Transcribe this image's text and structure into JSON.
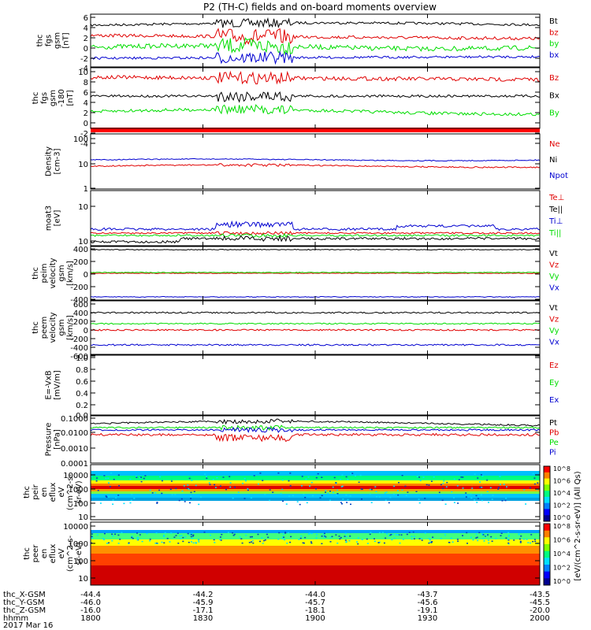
{
  "title": "P2 (TH-C) fields and on-board moments overview",
  "colors": {
    "black": "#000000",
    "red": "#e00000",
    "green": "#00dd00",
    "blue": "#0000d0",
    "navy": "#1010cc"
  },
  "panels": [
    {
      "ylabel": [
        "thc",
        "fgs",
        "gsm",
        "[nT]"
      ],
      "ticks": [
        "6",
        "4",
        "2",
        "0",
        "-2",
        "-4"
      ],
      "legend": [
        {
          "label": "Bt",
          "color": "black"
        },
        {
          "label": "bz",
          "color": "red"
        },
        {
          "label": "by",
          "color": "green"
        },
        {
          "label": "bx",
          "color": "blue"
        }
      ]
    },
    {
      "ylabel": [
        "thc",
        "fgs",
        "gsm",
        "-180",
        "[nT]"
      ],
      "ticks": [
        "10",
        "8",
        "6",
        "4",
        "2",
        "0",
        "-2",
        "-4"
      ],
      "legend": [
        {
          "label": "Bz",
          "color": "red"
        },
        {
          "label": "Bx",
          "color": "black"
        },
        {
          "label": "By",
          "color": "green"
        }
      ]
    },
    {
      "ylabel": [
        "Density",
        "[cm-3]"
      ],
      "ticks": [
        "100",
        "10",
        "1"
      ],
      "legend": [
        {
          "label": "Ne",
          "color": "red"
        },
        {
          "label": "Ni",
          "color": "black"
        },
        {
          "label": "Npot",
          "color": "blue"
        }
      ]
    },
    {
      "ylabel": [
        "moat3",
        "[eV]"
      ],
      "ticks": [
        "10",
        "10"
      ],
      "legend": [
        {
          "label": "Te⊥",
          "color": "red"
        },
        {
          "label": "Te||",
          "color": "black"
        },
        {
          "label": "Ti⊥",
          "color": "blue"
        },
        {
          "label": "Ti||",
          "color": "green"
        }
      ]
    },
    {
      "ylabel": [
        "thc",
        "peim",
        "velocity",
        "gsm",
        "[km/s]"
      ],
      "ticks": [
        "400",
        "200",
        "0",
        "-200",
        "-400"
      ],
      "legend": [
        {
          "label": "Vt",
          "color": "black"
        },
        {
          "label": "Vz",
          "color": "red"
        },
        {
          "label": "Vy",
          "color": "green"
        },
        {
          "label": "Vx",
          "color": "blue"
        }
      ]
    },
    {
      "ylabel": [
        "thc",
        "peem",
        "velocity",
        "gsm",
        "[km/s]"
      ],
      "ticks": [
        "600",
        "400",
        "200",
        "0",
        "-200",
        "-400",
        "-600"
      ],
      "legend": [
        {
          "label": "Vt",
          "color": "black"
        },
        {
          "label": "Vz",
          "color": "red"
        },
        {
          "label": "Vy",
          "color": "green"
        },
        {
          "label": "Vx",
          "color": "blue"
        }
      ]
    },
    {
      "ylabel": [
        "E=-VxB",
        "[mV/m]"
      ],
      "ticks": [
        "1.0",
        "0.8",
        "0.6",
        "0.4",
        "0.2",
        "0.0"
      ],
      "legend": [
        {
          "label": "Ez",
          "color": "red"
        },
        {
          "label": "Ey",
          "color": "green"
        },
        {
          "label": "Ex",
          "color": "blue"
        }
      ]
    },
    {
      "ylabel": [
        "Pressure",
        "[nPa]"
      ],
      "ticks": [
        "0.1000",
        "0.0100",
        "0.0010",
        "0.0001"
      ],
      "legend": [
        {
          "label": "Pt",
          "color": "black"
        },
        {
          "label": "Pb",
          "color": "red"
        },
        {
          "label": "Pe",
          "color": "green"
        },
        {
          "label": "Pi",
          "color": "blue"
        }
      ]
    },
    {
      "ylabel": [
        "thc",
        "peir",
        "en",
        "eflux",
        "eV",
        "(cm^2-s-",
        "sr-eV)"
      ],
      "ticks": [
        "10000",
        "1000",
        "100",
        "10"
      ],
      "legend": []
    },
    {
      "ylabel": [
        "thc",
        "peer",
        "en",
        "eflux",
        "eV",
        "(cm^2-s-",
        "sr-eV)"
      ],
      "ticks": [
        "10000",
        "1000",
        "100",
        "10"
      ],
      "legend": []
    }
  ],
  "colorbar": {
    "label": "[eV/(cm^2-s-sr-eV)] (All Qs)",
    "ticks": [
      "10^8",
      "10^6",
      "10^4",
      "10^2",
      "10^0"
    ]
  },
  "footer": {
    "rows": [
      {
        "label": "thc_X-GSM",
        "values": [
          "-44.4",
          "-44.2",
          "-44.0",
          "-43.7",
          "-43.5"
        ]
      },
      {
        "label": "thc_Y-GSM",
        "values": [
          "-46.0",
          "-45.9",
          "-45.7",
          "-45.6",
          "-45.5"
        ]
      },
      {
        "label": "thc_Z-GSM",
        "values": [
          "-16.0",
          "-17.1",
          "-18.1",
          "-19.1",
          "-20.0"
        ]
      },
      {
        "label": "hhmm",
        "values": [
          "1800",
          "1830",
          "1900",
          "1930",
          "2000"
        ]
      }
    ],
    "date": "2017 Mar 16"
  },
  "chart_data": {
    "type": "line",
    "title": "P2 (TH-C) fields and on-board moments overview",
    "x": [
      "1800",
      "1830",
      "1900",
      "1930",
      "2000"
    ],
    "panels": [
      {
        "ylabel": "thc fgs gsm [nT]",
        "ylim": [
          -4,
          6
        ],
        "series": [
          {
            "name": "Bt",
            "values": [
              4,
              3.5,
              3.5,
              3.5,
              3
            ]
          },
          {
            "name": "bz",
            "values": [
              3,
              2,
              1,
              1.5,
              1
            ]
          },
          {
            "name": "by",
            "values": [
              0,
              -1,
              0,
              0,
              0.5
            ]
          },
          {
            "name": "bx",
            "values": [
              -1,
              -2,
              -2.5,
              -2.5,
              -2.5
            ]
          }
        ]
      },
      {
        "ylabel": "thc fgs gsm-180 [nT]",
        "ylim": [
          -4,
          10
        ],
        "series": [
          {
            "name": "Bz",
            "values": [
              10,
              8,
              8,
              8,
              7
            ]
          },
          {
            "name": "Bx",
            "values": [
              4,
              3,
              4,
              4,
              4
            ]
          },
          {
            "name": "By",
            "values": [
              0,
              -1,
              1,
              1,
              1
            ]
          }
        ]
      },
      {
        "ylabel": "Density [cm-3]",
        "scale": "log",
        "ylim": [
          1,
          100
        ],
        "series": [
          {
            "name": "Ne",
            "values": [
              8,
              7.5,
              9,
              8,
              8
            ]
          },
          {
            "name": "Ni",
            "values": [
              12,
              13,
              14,
              13,
              13
            ]
          }
        ]
      },
      {
        "ylabel": "moat3 [eV]",
        "scale": "log",
        "series": [
          {
            "name": "Te⊥",
            "values": [
              14,
              13,
              13,
              13,
              13
            ]
          },
          {
            "name": "Te||",
            "values": [
              9,
              8,
              10,
              10,
              10
            ]
          },
          {
            "name": "Ti⊥",
            "values": [
              14,
              20,
              16,
              20,
              16
            ]
          },
          {
            "name": "Ti||",
            "values": [
              13,
              14,
              14,
              14,
              14
            ]
          }
        ]
      },
      {
        "ylabel": "thc peim velocity gsm [km/s]",
        "ylim": [
          -400,
          400
        ],
        "series": [
          {
            "name": "Vt",
            "values": [
              380,
              380,
              380,
              380,
              380
            ]
          },
          {
            "name": "Vz",
            "values": [
              0,
              0,
              0,
              0,
              0
            ]
          },
          {
            "name": "Vy",
            "values": [
              10,
              10,
              10,
              10,
              10
            ]
          },
          {
            "name": "Vx",
            "values": [
              -380,
              -380,
              -380,
              -380,
              -380
            ]
          }
        ]
      },
      {
        "ylabel": "thc peem velocity gsm [km/s]",
        "ylim": [
          -600,
          600
        ],
        "series": [
          {
            "name": "Vt",
            "values": [
              400,
              400,
              400,
              400,
              400
            ]
          },
          {
            "name": "Vz",
            "values": [
              -20,
              -20,
              -20,
              -20,
              -20
            ]
          },
          {
            "name": "Vy",
            "values": [
              30,
              30,
              30,
              30,
              30
            ]
          },
          {
            "name": "Vx",
            "values": [
              -350,
              -350,
              -350,
              -350,
              -350
            ]
          }
        ]
      },
      {
        "ylabel": "E=-VxB [mV/m]",
        "ylim": [
          0,
          1
        ],
        "series": []
      },
      {
        "ylabel": "Pressure [nPa]",
        "scale": "log",
        "ylim": [
          0.0001,
          0.1
        ],
        "series": [
          {
            "name": "Pt",
            "values": [
              0.02,
              0.015,
              0.025,
              0.02,
              0.02
            ]
          },
          {
            "name": "Pb",
            "values": [
              0.004,
              0.0025,
              0.004,
              0.004,
              0.004
            ]
          },
          {
            "name": "Pe",
            "values": [
              0.012,
              0.01,
              0.013,
              0.012,
              0.012
            ]
          },
          {
            "name": "Pi",
            "values": [
              0.01,
              0.009,
              0.01,
              0.01,
              0.01
            ]
          }
        ]
      }
    ]
  }
}
